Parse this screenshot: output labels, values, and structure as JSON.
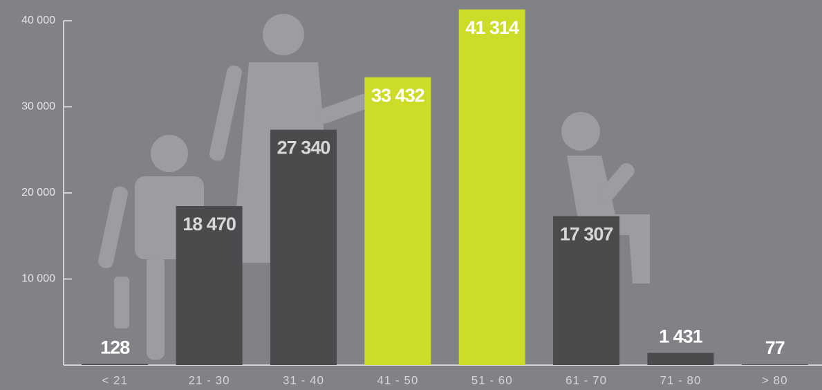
{
  "chart_data": {
    "type": "bar",
    "categories": [
      "< 21",
      "21 - 30",
      "31 - 40",
      "41 - 50",
      "51 - 60",
      "61 - 70",
      "71 - 80",
      "> 80"
    ],
    "values": [
      128,
      18470,
      27340,
      33432,
      41314,
      17307,
      1431,
      77
    ],
    "value_labels": [
      "128",
      "18 470",
      "27 340",
      "33 432",
      "41 314",
      "17 307",
      "1 431",
      "77"
    ],
    "colors": [
      "#4a4b4d",
      "#4a4b4d",
      "#4a4b4d",
      "#cddc29",
      "#cddc29",
      "#4a4b4d",
      "#4a4b4d",
      "#4a4b4d"
    ],
    "ylim": [
      0,
      40000
    ],
    "yticks": [
      {
        "value": 10000,
        "label": "10 000"
      },
      {
        "value": 20000,
        "label": "20 000"
      },
      {
        "value": 30000,
        "label": "30 000"
      },
      {
        "value": 40000,
        "label": "40 000"
      }
    ],
    "grid": false
  }
}
